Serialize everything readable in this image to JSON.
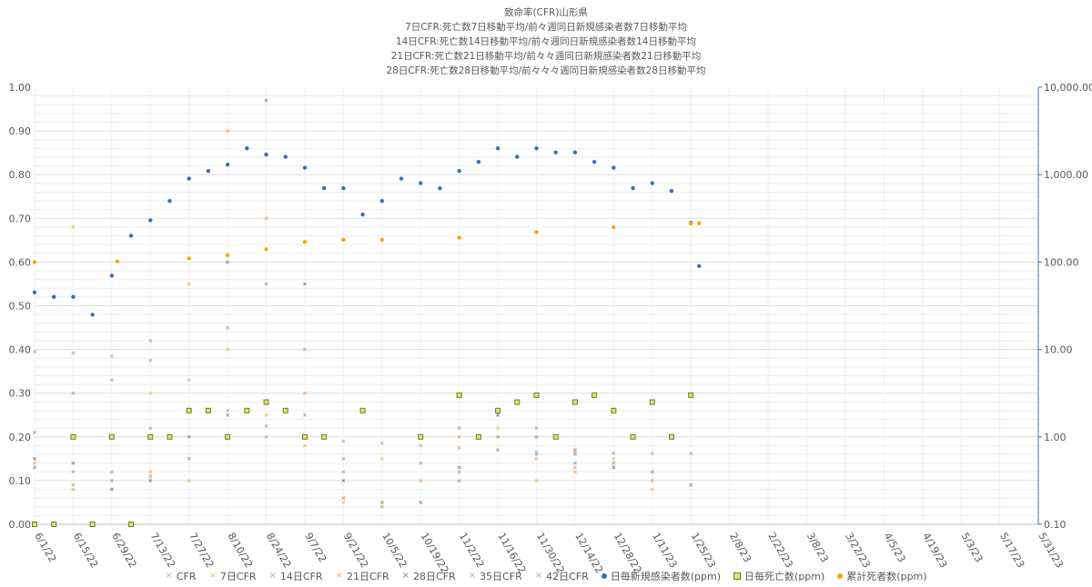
{
  "chart_data": {
    "type": "scatter",
    "title_lines": [
      "致命率(CFR)山形県",
      "7日CFR:死亡数7日移動平均/前々週同日新規感染者数7日移動平均",
      "14日CFR:死亡数14日移動平均/前々週同日新規感染者数14日移動平均",
      "21日CFR:死亡数21日移動平均/前々々週同日新規感染者数21日移動平均",
      "28日CFR:死亡数28日移動平均/前々々々週同日新規感染者数28日移動平均"
    ],
    "y_left": {
      "min": 0,
      "max": 1,
      "ticks": [
        "0.00",
        "0.10",
        "0.20",
        "0.30",
        "0.40",
        "0.50",
        "0.60",
        "0.70",
        "0.80",
        "0.90",
        "1.00"
      ]
    },
    "y_right": {
      "scale": "log",
      "min": 0.1,
      "max": 10000,
      "ticks": [
        "0.10",
        "1.00",
        "10.00",
        "100.00",
        "1,000.00",
        "10,000.00"
      ]
    },
    "x_axis": {
      "start": "2022-06-01",
      "end": "2023-05-31",
      "total_days": 364,
      "tick_labels": [
        "6/1/22",
        "6/15/22",
        "6/29/22",
        "7/13/22",
        "7/27/22",
        "8/10/22",
        "8/24/22",
        "9/7/22",
        "9/21/22",
        "10/5/22",
        "10/19/22",
        "11/2/22",
        "11/16/22",
        "11/30/22",
        "12/14/22",
        "12/28/22",
        "1/11/23",
        "1/25/23",
        "2/8/23",
        "2/22/23",
        "3/8/23",
        "3/22/23",
        "4/5/23",
        "4/19/23",
        "5/3/23",
        "5/17/23",
        "5/31/23"
      ]
    },
    "series": [
      {
        "name": "CFR",
        "axis": "left",
        "color": "#b4b4b4",
        "marker": "x",
        "points": [
          [
            0,
            0.395
          ],
          [
            14,
            0.392
          ],
          [
            28,
            0.385
          ],
          [
            42,
            0.375
          ],
          [
            56,
            0.33
          ],
          [
            70,
            0.26
          ],
          [
            84,
            0.225
          ],
          [
            98,
            0.2
          ],
          [
            112,
            0.19
          ],
          [
            126,
            0.185
          ],
          [
            140,
            0.18
          ],
          [
            154,
            0.175
          ],
          [
            168,
            0.17
          ],
          [
            182,
            0.165
          ],
          [
            196,
            0.163
          ],
          [
            210,
            0.163
          ],
          [
            224,
            0.162
          ],
          [
            238,
            0.162
          ]
        ]
      },
      {
        "name": "7日CFR",
        "axis": "left",
        "color": "#f0c070",
        "marker": "x",
        "points": [
          [
            0,
            0.15
          ],
          [
            14,
            0.68
          ],
          [
            28,
            0.12
          ],
          [
            42,
            0.3
          ],
          [
            56,
            0.1
          ],
          [
            70,
            0.4
          ],
          [
            84,
            0.25
          ],
          [
            98,
            0.18
          ],
          [
            112,
            0.05
          ],
          [
            126,
            0.15
          ],
          [
            140,
            0.2
          ],
          [
            154,
            0.12
          ],
          [
            168,
            0.22
          ],
          [
            182,
            0.1
          ],
          [
            196,
            0.12
          ],
          [
            210,
            0.15
          ],
          [
            224,
            0.08
          ],
          [
            238,
            0.09
          ]
        ]
      },
      {
        "name": "14日CFR",
        "axis": "left",
        "color": "#7ab8e6",
        "marker": "x",
        "points": [
          [
            0,
            0.21
          ],
          [
            14,
            0.3
          ],
          [
            28,
            0.33
          ],
          [
            42,
            0.42
          ],
          [
            56,
            0.15
          ],
          [
            70,
            0.25
          ],
          [
            84,
            0.2
          ],
          [
            98,
            0.25
          ],
          [
            112,
            0.06
          ],
          [
            126,
            0.04
          ],
          [
            140,
            0.14
          ],
          [
            154,
            0.22
          ],
          [
            168,
            0.25
          ],
          [
            182,
            0.16
          ],
          [
            196,
            0.14
          ],
          [
            210,
            0.14
          ],
          [
            224,
            0.12
          ],
          [
            238,
            0.09
          ]
        ]
      },
      {
        "name": "21日CFR",
        "axis": "left",
        "color": "#f2a96b",
        "marker": "x",
        "points": [
          [
            0,
            0.14
          ],
          [
            14,
            0.08
          ],
          [
            28,
            0.1
          ],
          [
            42,
            0.12
          ],
          [
            56,
            0.55
          ],
          [
            70,
            0.9
          ],
          [
            84,
            0.7
          ],
          [
            98,
            0.3
          ],
          [
            112,
            0.06
          ],
          [
            126,
            0.04
          ],
          [
            140,
            0.1
          ],
          [
            154,
            0.2
          ],
          [
            168,
            0.2
          ],
          [
            182,
            0.15
          ],
          [
            196,
            0.13
          ],
          [
            210,
            0.13
          ],
          [
            224,
            0.1
          ],
          [
            238,
            0.09
          ]
        ]
      },
      {
        "name": "28日CFR",
        "axis": "left",
        "color": "#7d8fa8",
        "marker": "x",
        "points": [
          [
            0,
            0.15
          ],
          [
            14,
            0.14
          ],
          [
            28,
            0.08
          ],
          [
            42,
            0.1
          ],
          [
            56,
            0.2
          ],
          [
            70,
            0.6
          ],
          [
            84,
            0.97
          ],
          [
            98,
            0.55
          ],
          [
            112,
            0.1
          ],
          [
            126,
            0.05
          ],
          [
            140,
            0.05
          ],
          [
            154,
            0.13
          ],
          [
            168,
            0.25
          ],
          [
            182,
            0.2
          ],
          [
            196,
            0.17
          ],
          [
            210,
            0.13
          ],
          [
            224,
            0.12
          ],
          [
            238,
            0.09
          ]
        ]
      },
      {
        "name": "35日CFR",
        "axis": "left",
        "color": "#c8a67a",
        "marker": "x",
        "points": [
          [
            0,
            0.13
          ],
          [
            14,
            0.12
          ],
          [
            28,
            0.1
          ],
          [
            42,
            0.11
          ],
          [
            56,
            0.15
          ],
          [
            70,
            0.45
          ],
          [
            84,
            0.55
          ],
          [
            98,
            0.4
          ],
          [
            112,
            0.15
          ],
          [
            126,
            0.05
          ],
          [
            140,
            0.05
          ],
          [
            154,
            0.1
          ],
          [
            168,
            0.2
          ],
          [
            182,
            0.22
          ],
          [
            196,
            0.17
          ],
          [
            210,
            0.14
          ],
          [
            224,
            0.12
          ],
          [
            238,
            0.09
          ]
        ]
      },
      {
        "name": "42日CFR",
        "axis": "left",
        "color": "#8cc58c",
        "marker": "x",
        "points": [
          [
            0,
            0.13
          ],
          [
            14,
            0.09
          ],
          [
            28,
            0.12
          ],
          [
            42,
            0.22
          ],
          [
            56,
            0.26
          ],
          [
            70,
            0.25
          ],
          [
            84,
            0.28
          ],
          [
            98,
            0.2
          ],
          [
            112,
            0.12
          ],
          [
            126,
            0.05
          ],
          [
            140,
            0.05
          ],
          [
            154,
            0.12
          ],
          [
            168,
            0.17
          ],
          [
            182,
            0.2
          ],
          [
            196,
            0.16
          ],
          [
            210,
            0.14
          ],
          [
            224,
            0.12
          ],
          [
            238,
            0.09
          ]
        ]
      },
      {
        "name": "日毎新規感染者数(ppm)",
        "axis": "right",
        "color": "#3c6cc2",
        "marker": "circle",
        "points": [
          [
            0,
            45
          ],
          [
            7,
            40
          ],
          [
            14,
            40
          ],
          [
            21,
            25
          ],
          [
            28,
            70
          ],
          [
            35,
            200
          ],
          [
            42,
            300
          ],
          [
            49,
            500
          ],
          [
            56,
            900
          ],
          [
            63,
            1100
          ],
          [
            70,
            1300
          ],
          [
            77,
            2000
          ],
          [
            84,
            1700
          ],
          [
            91,
            1600
          ],
          [
            98,
            1200
          ],
          [
            105,
            700
          ],
          [
            112,
            700
          ],
          [
            119,
            350
          ],
          [
            126,
            500
          ],
          [
            133,
            900
          ],
          [
            140,
            800
          ],
          [
            147,
            700
          ],
          [
            154,
            1100
          ],
          [
            161,
            1400
          ],
          [
            168,
            2000
          ],
          [
            175,
            1600
          ],
          [
            182,
            2000
          ],
          [
            189,
            1800
          ],
          [
            196,
            1800
          ],
          [
            203,
            1400
          ],
          [
            210,
            1200
          ],
          [
            217,
            700
          ],
          [
            224,
            800
          ],
          [
            231,
            650
          ],
          [
            238,
            280
          ],
          [
            241,
            90
          ]
        ]
      },
      {
        "name": "日毎死亡数(ppm)",
        "axis": "right",
        "color": "#6b7d2a",
        "fill": "#e8e070",
        "marker": "square",
        "points": [
          [
            0,
            0.1
          ],
          [
            7,
            0.1
          ],
          [
            14,
            1.0
          ],
          [
            21,
            0.1
          ],
          [
            28,
            1.0
          ],
          [
            35,
            0.1
          ],
          [
            42,
            1.0
          ],
          [
            49,
            1.0
          ],
          [
            56,
            2.0
          ],
          [
            63,
            2.0
          ],
          [
            70,
            1.0
          ],
          [
            77,
            2.0
          ],
          [
            84,
            2.5
          ],
          [
            91,
            2.0
          ],
          [
            98,
            1.0
          ],
          [
            105,
            1.0
          ],
          [
            119,
            2.0
          ],
          [
            140,
            1.0
          ],
          [
            154,
            3.0
          ],
          [
            161,
            1.0
          ],
          [
            168,
            2.0
          ],
          [
            175,
            2.5
          ],
          [
            182,
            3.0
          ],
          [
            189,
            1.0
          ],
          [
            196,
            2.5
          ],
          [
            203,
            3.0
          ],
          [
            210,
            2.0
          ],
          [
            217,
            1.0
          ],
          [
            224,
            2.5
          ],
          [
            231,
            1.0
          ],
          [
            238,
            3.0
          ]
        ]
      },
      {
        "name": "累計死者数(ppm)",
        "axis": "right",
        "color": "#f5a800",
        "marker": "circle",
        "points": [
          [
            0,
            100
          ],
          [
            30,
            102
          ],
          [
            56,
            110
          ],
          [
            70,
            120
          ],
          [
            84,
            140
          ],
          [
            98,
            170
          ],
          [
            112,
            180
          ],
          [
            126,
            180
          ],
          [
            154,
            190
          ],
          [
            182,
            220
          ],
          [
            210,
            250
          ],
          [
            238,
            275
          ],
          [
            241,
            278
          ]
        ]
      }
    ],
    "legend": [
      "CFR",
      "7日CFR",
      "14日CFR",
      "21日CFR",
      "28日CFR",
      "35日CFR",
      "42日CFR",
      "日毎新規感染者数(ppm)",
      "日毎死亡数(ppm)",
      "累計死者数(ppm)"
    ]
  }
}
